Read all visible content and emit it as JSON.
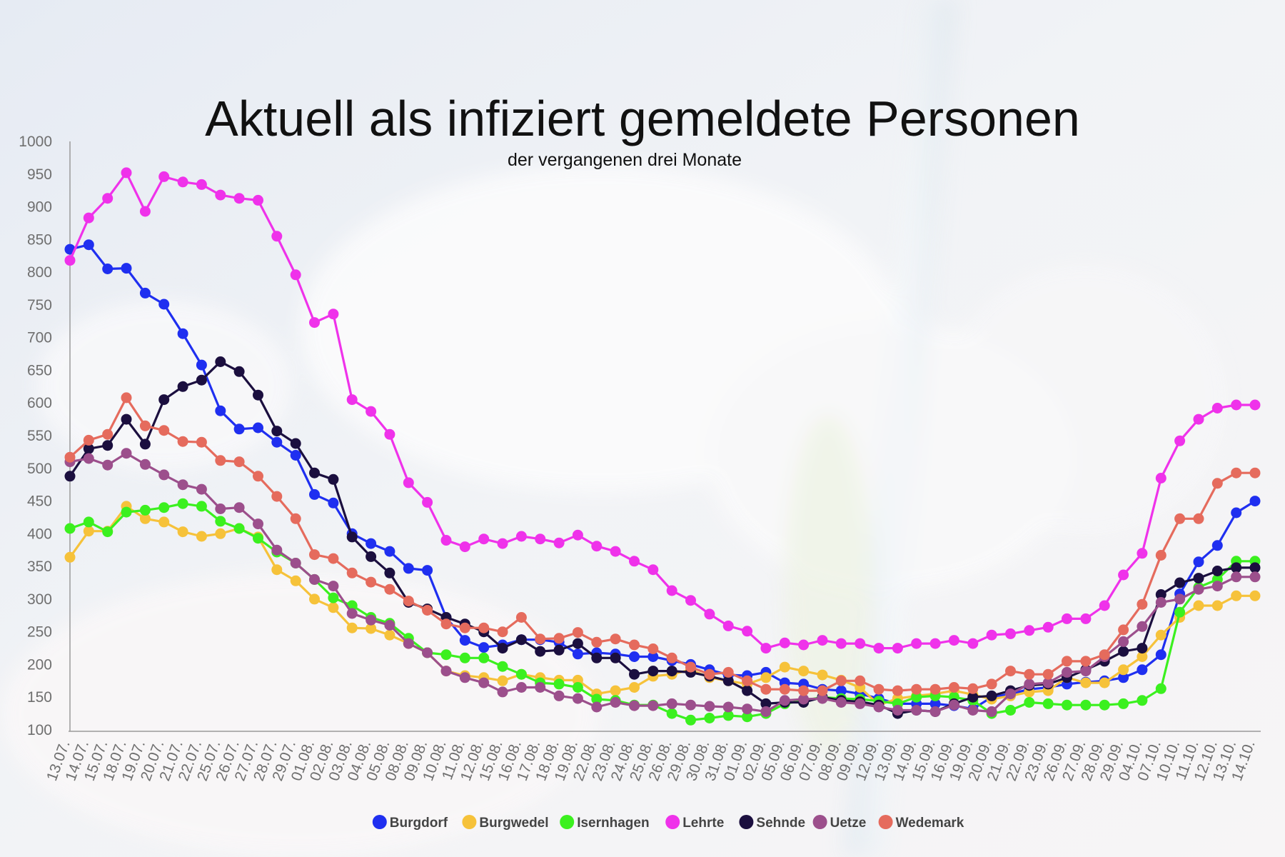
{
  "chart_data": {
    "type": "line",
    "title": "Aktuell als infiziert gemeldete Personen",
    "subtitle": "der vergangenen drei Monate",
    "ylim": [
      100,
      1000
    ],
    "yticks": [
      100,
      150,
      200,
      250,
      300,
      350,
      400,
      450,
      500,
      550,
      600,
      650,
      700,
      750,
      800,
      850,
      900,
      950,
      1000
    ],
    "grid": false,
    "legend_position": "bottom-center",
    "categories": [
      "13.07.",
      "14.07.",
      "15.07.",
      "18.07.",
      "19.07.",
      "20.07.",
      "21.07.",
      "22.07.",
      "25.07.",
      "26.07.",
      "27.07.",
      "28.07.",
      "29.07.",
      "01.08.",
      "02.08.",
      "03.08.",
      "04.08.",
      "05.08.",
      "08.08.",
      "09.08.",
      "10.08.",
      "11.08.",
      "12.08.",
      "15.08.",
      "16.08.",
      "17.08.",
      "18.08.",
      "19.08.",
      "22.08.",
      "23.08.",
      "24.08.",
      "25.08.",
      "26.08.",
      "29.08.",
      "30.08.",
      "31.08.",
      "01.09.",
      "02.09.",
      "05.09.",
      "06.09.",
      "07.09.",
      "08.09.",
      "09.09.",
      "12.09.",
      "13.09.",
      "14.09.",
      "15.09.",
      "16.09.",
      "19.09.",
      "20.09.",
      "21.09.",
      "22.09.",
      "23.09.",
      "26.09.",
      "27.09.",
      "28.09.",
      "29.09.",
      "04.10.",
      "07.10.",
      "10.10.",
      "11.10.",
      "12.10.",
      "13.10.",
      "14.10."
    ],
    "series": [
      {
        "name": "Burgdorf",
        "color": "#1f2ff0",
        "values": [
          835,
          842,
          805,
          806,
          768,
          751,
          706,
          658,
          588,
          560,
          562,
          540,
          520,
          460,
          447,
          400,
          385,
          373,
          347,
          344,
          272,
          237,
          226,
          230,
          238,
          238,
          234,
          216,
          218,
          216,
          212,
          212,
          206,
          200,
          192,
          184,
          183,
          188,
          172,
          170,
          162,
          160,
          155,
          148,
          140,
          140,
          140,
          137,
          132,
          150,
          155,
          162,
          165,
          170,
          173,
          175,
          180,
          192,
          215,
          308,
          357,
          382,
          432,
          450
        ]
      },
      {
        "name": "Burgwedel",
        "color": "#f6c23a",
        "values": [
          364,
          404,
          404,
          442,
          423,
          418,
          403,
          396,
          400,
          408,
          395,
          345,
          328,
          300,
          287,
          256,
          255,
          245,
          232,
          218,
          190,
          183,
          180,
          175,
          185,
          180,
          176,
          176,
          155,
          160,
          165,
          182,
          185,
          192,
          180,
          175,
          170,
          180,
          196,
          190,
          184,
          176,
          165,
          138,
          148,
          152,
          155,
          160,
          154,
          147,
          152,
          158,
          160,
          180,
          172,
          172,
          192,
          212,
          245,
          272,
          290,
          290,
          305,
          305
        ]
      },
      {
        "name": "Isernhagen",
        "color": "#3bf01f",
        "values": [
          408,
          418,
          403,
          433,
          436,
          440,
          446,
          442,
          419,
          408,
          393,
          372,
          355,
          330,
          302,
          290,
          272,
          263,
          240,
          218,
          215,
          210,
          210,
          197,
          185,
          172,
          170,
          165,
          147,
          145,
          138,
          138,
          125,
          115,
          118,
          122,
          120,
          125,
          140,
          145,
          150,
          148,
          147,
          144,
          140,
          150,
          152,
          150,
          145,
          125,
          130,
          142,
          140,
          138,
          138,
          138,
          140,
          145,
          163,
          280,
          318,
          330,
          358,
          358
        ]
      },
      {
        "name": "Lehrte",
        "color": "#ef32ea",
        "values": [
          818,
          883,
          913,
          952,
          893,
          946,
          938,
          934,
          918,
          913,
          910,
          855,
          796,
          723,
          736,
          605,
          587,
          552,
          478,
          448,
          390,
          380,
          392,
          385,
          396,
          392,
          386,
          398,
          381,
          373,
          358,
          345,
          313,
          298,
          277,
          259,
          251,
          225,
          233,
          230,
          237,
          232,
          232,
          225,
          225,
          232,
          232,
          237,
          232,
          245,
          247,
          252,
          257,
          270,
          270,
          290,
          337,
          370,
          485,
          542,
          575,
          592,
          597,
          597
        ]
      },
      {
        "name": "Sehnde",
        "color": "#1b0f3f",
        "values": [
          488,
          530,
          535,
          575,
          537,
          605,
          625,
          635,
          663,
          648,
          612,
          557,
          538,
          493,
          483,
          395,
          365,
          340,
          295,
          285,
          272,
          262,
          250,
          225,
          238,
          220,
          222,
          232,
          210,
          210,
          185,
          190,
          190,
          188,
          182,
          175,
          160,
          140,
          142,
          142,
          150,
          145,
          143,
          138,
          125,
          130,
          128,
          140,
          150,
          152,
          160,
          168,
          170,
          180,
          192,
          205,
          220,
          225,
          307,
          325,
          332,
          343,
          348,
          348
        ]
      },
      {
        "name": "Uetze",
        "color": "#9c4f8c",
        "values": [
          510,
          515,
          505,
          523,
          506,
          490,
          475,
          468,
          438,
          440,
          415,
          375,
          355,
          330,
          320,
          278,
          268,
          260,
          232,
          218,
          190,
          180,
          172,
          158,
          165,
          165,
          152,
          148,
          135,
          142,
          137,
          137,
          140,
          138,
          136,
          135,
          132,
          128,
          145,
          147,
          148,
          142,
          140,
          135,
          130,
          130,
          128,
          138,
          130,
          128,
          155,
          170,
          172,
          188,
          190,
          212,
          235,
          258,
          295,
          300,
          315,
          320,
          334,
          334
        ]
      },
      {
        "name": "Wedemark",
        "color": "#e56b5d",
        "values": [
          517,
          543,
          552,
          608,
          565,
          558,
          541,
          540,
          512,
          510,
          488,
          457,
          423,
          368,
          362,
          340,
          326,
          315,
          297,
          283,
          262,
          256,
          256,
          250,
          272,
          239,
          240,
          249,
          234,
          239,
          230,
          224,
          210,
          196,
          185,
          188,
          175,
          162,
          162,
          160,
          160,
          175,
          175,
          162,
          160,
          162,
          162,
          165,
          163,
          170,
          190,
          185,
          185,
          205,
          205,
          215,
          253,
          292,
          367,
          423,
          423,
          477,
          493,
          493
        ]
      }
    ]
  }
}
